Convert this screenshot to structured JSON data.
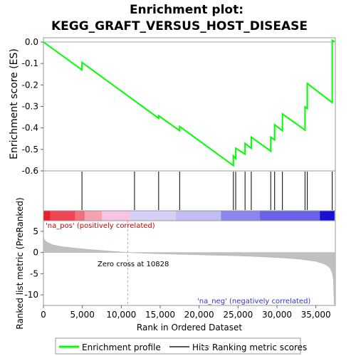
{
  "chart_data": {
    "type": "line",
    "title_line1": "Enrichment plot:",
    "title_line2": "KEGG_GRAFT_VERSUS_HOST_DISEASE",
    "x_label": "Rank in Ordered Dataset",
    "x_range": [
      0,
      37500
    ],
    "x_ticks": [
      0,
      5000,
      10000,
      15000,
      20000,
      25000,
      30000,
      35000
    ],
    "x_tick_labels": [
      "0",
      "5,000",
      "10,000",
      "15,000",
      "20,000",
      "25,000",
      "30,000",
      "35,000"
    ],
    "es_panel": {
      "y_label": "Enrichment score (ES)",
      "y_range": [
        -0.6,
        0.02
      ],
      "y_ticks": [
        0.0,
        -0.1,
        -0.2,
        -0.3,
        -0.4,
        -0.5,
        -0.6
      ],
      "y_tick_labels": [
        "0.0",
        "-0.1",
        "-0.2",
        "-0.3",
        "-0.4",
        "-0.5",
        "-0.6"
      ],
      "series": {
        "name": "Enrichment profile",
        "color": "#00ff00",
        "points": [
          [
            0,
            0.0
          ],
          [
            4950,
            -0.13
          ],
          [
            4950,
            -0.095
          ],
          [
            14800,
            -0.355
          ],
          [
            14800,
            -0.343
          ],
          [
            17500,
            -0.413
          ],
          [
            17500,
            -0.393
          ],
          [
            24400,
            -0.575
          ],
          [
            24400,
            -0.53
          ],
          [
            24700,
            -0.543
          ],
          [
            24700,
            -0.495
          ],
          [
            25900,
            -0.522
          ],
          [
            25900,
            -0.472
          ],
          [
            26700,
            -0.495
          ],
          [
            26700,
            -0.443
          ],
          [
            29200,
            -0.508
          ],
          [
            29200,
            -0.443
          ],
          [
            29700,
            -0.456
          ],
          [
            29700,
            -0.385
          ],
          [
            30700,
            -0.413
          ],
          [
            30700,
            -0.335
          ],
          [
            33600,
            -0.41
          ],
          [
            33600,
            -0.302
          ],
          [
            33900,
            -0.31
          ],
          [
            33900,
            -0.193
          ],
          [
            37100,
            -0.282
          ],
          [
            37100,
            0.008
          ],
          [
            37400,
            0.003
          ]
        ]
      }
    },
    "hits": {
      "name": "Hits",
      "positions": [
        4950,
        11700,
        14800,
        17500,
        24400,
        24700,
        25900,
        26700,
        29200,
        29700,
        30700,
        33600,
        33900,
        37100
      ]
    },
    "color_bar": {
      "segments": [
        {
          "x0": 0,
          "x1": 900,
          "color": "#e8202b"
        },
        {
          "x0": 900,
          "x1": 4100,
          "color": "#f04555"
        },
        {
          "x0": 4100,
          "x1": 5300,
          "color": "#f0707c"
        },
        {
          "x0": 5300,
          "x1": 7500,
          "color": "#f5a2ad"
        },
        {
          "x0": 7500,
          "x1": 11100,
          "color": "#f8c4e4"
        },
        {
          "x0": 11100,
          "x1": 17000,
          "color": "#d4d0f4"
        },
        {
          "x0": 17000,
          "x1": 22800,
          "color": "#c0bdf4"
        },
        {
          "x0": 22800,
          "x1": 27800,
          "color": "#8a86ee"
        },
        {
          "x0": 27800,
          "x1": 35500,
          "color": "#6a63ea"
        },
        {
          "x0": 35500,
          "x1": 37400,
          "color": "#1a10d4"
        }
      ]
    },
    "rank_panel": {
      "y_label": "Ranked list metric (PreRanked)",
      "y_range": [
        -12.5,
        7.5
      ],
      "y_ticks": [
        5,
        0,
        -5,
        -10
      ],
      "y_tick_labels": [
        "5",
        "0",
        "-5",
        "-10"
      ],
      "series": {
        "name": "Ranking metric scores",
        "color": "#c0c0c0",
        "points": [
          [
            0,
            4.2
          ],
          [
            100,
            3.1
          ],
          [
            400,
            2.5
          ],
          [
            1200,
            1.8
          ],
          [
            2500,
            1.35
          ],
          [
            4000,
            1.05
          ],
          [
            6000,
            0.7
          ],
          [
            8000,
            0.4
          ],
          [
            10000,
            0.12
          ],
          [
            10828,
            0.0
          ],
          [
            12000,
            -0.12
          ],
          [
            15000,
            -0.32
          ],
          [
            20000,
            -0.55
          ],
          [
            25000,
            -0.78
          ],
          [
            28000,
            -1.0
          ],
          [
            31000,
            -1.3
          ],
          [
            33000,
            -1.6
          ],
          [
            35000,
            -2.1
          ],
          [
            36200,
            -2.8
          ],
          [
            36800,
            -3.6
          ],
          [
            37100,
            -4.8
          ],
          [
            37250,
            -6.5
          ],
          [
            37350,
            -12.2
          ],
          [
            37400,
            -12.2
          ]
        ]
      },
      "zero_cross_x": 10828,
      "zero_cross_label": "Zero cross at 10828",
      "pos_label": "'na_pos' (positively correlated)",
      "neg_label": "'na_neg' (negatively correlated)"
    },
    "legend": {
      "items": [
        {
          "label": "Enrichment profile",
          "color": "#00ff00"
        },
        {
          "label": "Hits",
          "color": "#555555"
        },
        {
          "label": "Ranking metric scores",
          "color": "#d0d0d0"
        }
      ]
    }
  }
}
